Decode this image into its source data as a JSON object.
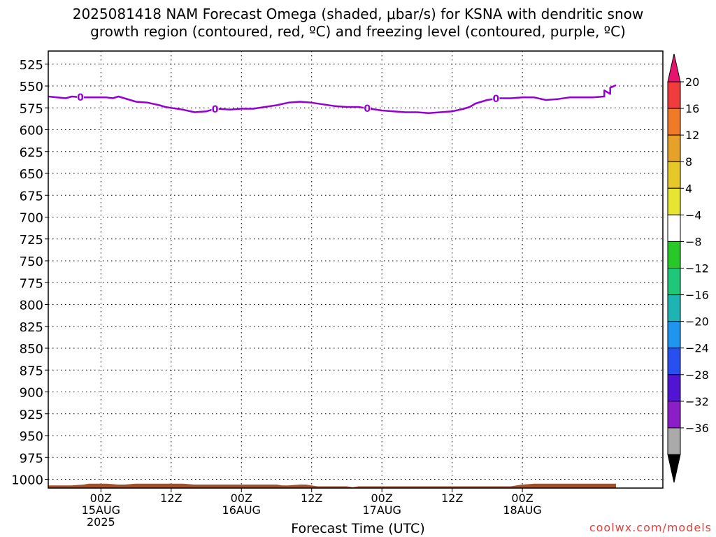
{
  "title_line1": "2025081418 NAM Forecast Omega (shaded, μbar/s) for KSNA with dendritic snow",
  "title_line2": "growth region (contoured, red, ºC) and freezing level (contoured, purple, ºC)",
  "credit": "coolwx.com/models",
  "chart_data": {
    "type": "time-height contour",
    "xlabel": "Forecast Time (UTC)",
    "ylabel": "",
    "y_axis_reversed": true,
    "ylim": [
      1010,
      510
    ],
    "grid": true,
    "x_hours_range": [
      -9,
      96
    ],
    "y_ticks": [
      525,
      550,
      575,
      600,
      625,
      650,
      675,
      700,
      725,
      750,
      775,
      800,
      825,
      850,
      875,
      900,
      925,
      950,
      975,
      1000
    ],
    "x_ticks": [
      {
        "hour": 0,
        "l1": "00Z",
        "l2": "15AUG",
        "l3": "2025"
      },
      {
        "hour": 12,
        "l1": "12Z",
        "l2": "",
        "l3": ""
      },
      {
        "hour": 24,
        "l1": "00Z",
        "l2": "16AUG",
        "l3": ""
      },
      {
        "hour": 36,
        "l1": "12Z",
        "l2": "",
        "l3": ""
      },
      {
        "hour": 48,
        "l1": "00Z",
        "l2": "17AUG",
        "l3": ""
      },
      {
        "hour": 60,
        "l1": "12Z",
        "l2": "",
        "l3": ""
      },
      {
        "hour": 72,
        "l1": "00Z",
        "l2": "18AUG",
        "l3": ""
      }
    ],
    "freezing_level": {
      "label": "0",
      "color": "#9400d3",
      "hours": [
        -9,
        -6,
        -5,
        -3,
        -1,
        0,
        1,
        2,
        3,
        4,
        6,
        8,
        10,
        11,
        12,
        13,
        14,
        16,
        18,
        19,
        20,
        22,
        24,
        26,
        28,
        30,
        32,
        34,
        36,
        38,
        40,
        42,
        44,
        45,
        46,
        48,
        50,
        52,
        54,
        56,
        58,
        60,
        62,
        63,
        64,
        66,
        68,
        70,
        72,
        74,
        76,
        78,
        80,
        82,
        84,
        86,
        87
      ],
      "pressure": [
        562,
        564,
        562,
        563,
        563,
        563,
        563,
        564,
        562,
        564,
        568,
        569,
        572,
        574,
        575,
        576,
        577,
        580,
        579,
        577,
        576,
        577,
        576,
        576,
        574,
        572,
        569,
        568,
        569,
        571,
        573,
        574,
        574,
        575,
        576,
        578,
        579,
        580,
        580,
        581,
        580,
        579,
        576,
        574,
        570,
        566,
        564,
        564,
        563,
        563,
        566,
        565,
        563,
        563,
        563,
        562,
        559
      ],
      "extra_hours": [
        86,
        87,
        88
      ],
      "extra_pressure": [
        555,
        552,
        549
      ],
      "label_hours": [
        -3.5,
        19.5,
        45.5,
        67.5
      ]
    },
    "terrain": {
      "color": "#a0522d",
      "hours": [
        -9,
        -7,
        -5,
        -3,
        -2,
        -1,
        1,
        3,
        4,
        6,
        8,
        10,
        12,
        14,
        16,
        18,
        20,
        22,
        24,
        26,
        28,
        30,
        31,
        32,
        34,
        35,
        36,
        37,
        38,
        40,
        42,
        43,
        44,
        45,
        46,
        48,
        50,
        52,
        54,
        56,
        58,
        60,
        62,
        64,
        66,
        68,
        70,
        71,
        72,
        74,
        76,
        78,
        80,
        82,
        84,
        86,
        88
      ],
      "pressure": [
        1007,
        1007,
        1007,
        1006,
        1005,
        1005,
        1005,
        1006,
        1006,
        1005,
        1005,
        1005,
        1005,
        1005,
        1006,
        1006,
        1006,
        1006,
        1006,
        1006,
        1006,
        1006,
        1007,
        1007,
        1006,
        1006,
        1007,
        1008,
        1008,
        1008,
        1008,
        1009,
        1008,
        1008,
        1008,
        1008,
        1008,
        1008,
        1008,
        1008,
        1008,
        1008,
        1008,
        1008,
        1008,
        1008,
        1008,
        1007,
        1006,
        1005,
        1005,
        1005,
        1005,
        1005,
        1005,
        1005,
        1005
      ]
    },
    "colorbar": {
      "units": "μbar/s",
      "levels": [
        "20",
        "16",
        "12",
        "8",
        "4",
        "-4",
        "-8",
        "-12",
        "-16",
        "-20",
        "-24",
        "-28",
        "-32",
        "-36"
      ],
      "colors": [
        "#f03c3c",
        "#f07a28",
        "#e6a228",
        "#e6c828",
        "#e6e632",
        "#ffffff",
        "#28c828",
        "#1ec878",
        "#1eb4b4",
        "#1e96f0",
        "#2850f0",
        "#5014d2",
        "#8c1ec8",
        "#aaaaaa"
      ],
      "top_arrow_color": "#e6146e",
      "bottom_arrow_color": "#000000"
    }
  }
}
